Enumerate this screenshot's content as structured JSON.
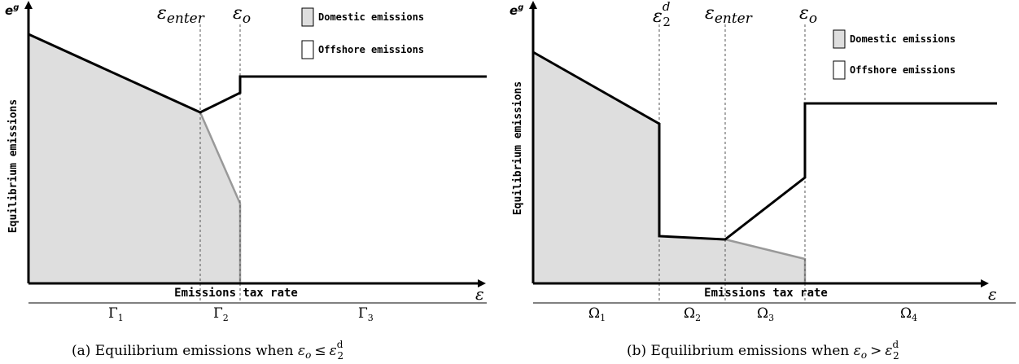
{
  "colors": {
    "domestic_fill": "#dedede",
    "total_line": "#000000",
    "domestic_line": "#999999",
    "guide_line": "#555555"
  },
  "panel_a": {
    "y_axis_symbol": "e",
    "y_axis_superscript": "g",
    "y_axis_label": "Equilibrium emissions",
    "x_axis_label": "Emissions tax rate",
    "x_axis_symbol": "ε",
    "markers": [
      {
        "base": "ε",
        "sub": "enter",
        "sup": ""
      },
      {
        "base": "ε",
        "sub": "o",
        "sup": ""
      }
    ],
    "legend": [
      {
        "label": "Domestic emissions",
        "swatch": "filled"
      },
      {
        "label": "Offshore emissions",
        "swatch": "empty"
      }
    ],
    "regions": [
      {
        "sym": "Γ",
        "sub": "1"
      },
      {
        "sym": "Γ",
        "sub": "2"
      },
      {
        "sym": "Γ",
        "sub": "3"
      }
    ],
    "caption_prefix": "(a) Equilibrium emissions when ",
    "caption_math": {
      "lhs": "ε",
      "lhs_sub": "o",
      "op": "≤",
      "rhs": "ε",
      "rhs_sub": "2",
      "rhs_sup": "d"
    }
  },
  "panel_b": {
    "y_axis_symbol": "e",
    "y_axis_superscript": "g",
    "y_axis_label": "Equilibrium emissions",
    "x_axis_label": "Emissions tax rate",
    "x_axis_symbol": "ε",
    "markers": [
      {
        "base": "ε",
        "sub": "2",
        "sup": "d"
      },
      {
        "base": "ε",
        "sub": "enter",
        "sup": ""
      },
      {
        "base": "ε",
        "sub": "o",
        "sup": ""
      }
    ],
    "legend": [
      {
        "label": "Domestic emissions",
        "swatch": "filled"
      },
      {
        "label": "Offshore emissions",
        "swatch": "empty"
      }
    ],
    "regions": [
      {
        "sym": "Ω",
        "sub": "1"
      },
      {
        "sym": "Ω",
        "sub": "2"
      },
      {
        "sym": "Ω",
        "sub": "3"
      },
      {
        "sym": "Ω",
        "sub": "4"
      }
    ],
    "caption_prefix": "(b) Equilibrium emissions when ",
    "caption_math": {
      "lhs": "ε",
      "lhs_sub": "o",
      "op": ">",
      "rhs": "ε",
      "rhs_sub": "2",
      "rhs_sup": "d"
    }
  }
}
